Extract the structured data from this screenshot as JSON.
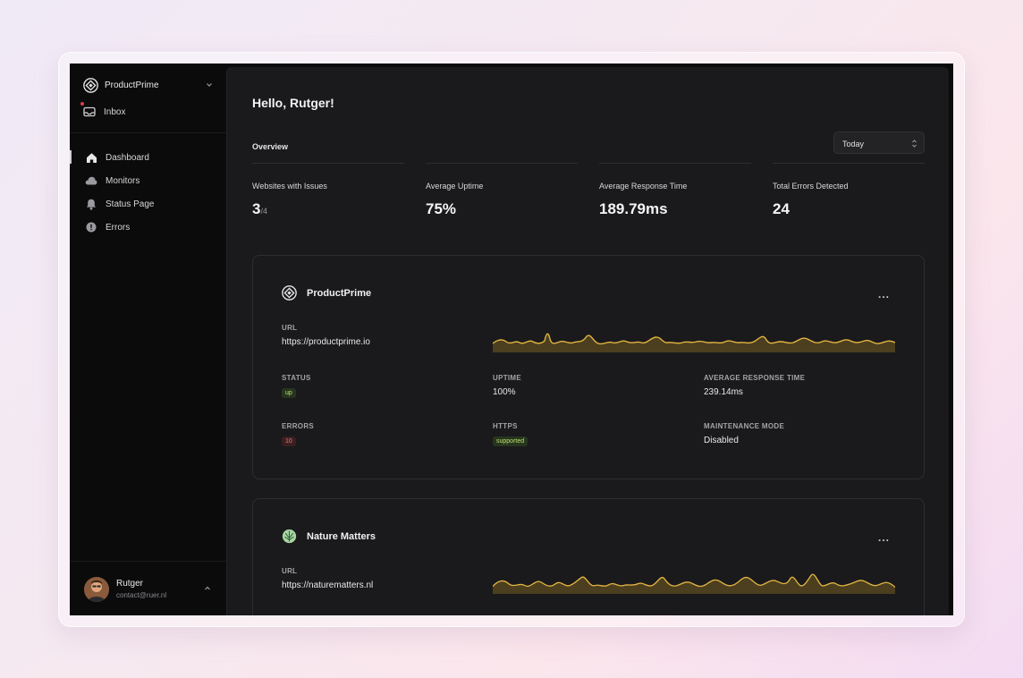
{
  "sidebar": {
    "brand": "ProductPrime",
    "inbox_label": "Inbox",
    "items": [
      {
        "label": "Dashboard",
        "icon": "home-icon",
        "active": true
      },
      {
        "label": "Monitors",
        "icon": "cloud-icon",
        "active": false
      },
      {
        "label": "Status Page",
        "icon": "bell-icon",
        "active": false
      },
      {
        "label": "Errors",
        "icon": "alert-circle-icon",
        "active": false
      }
    ],
    "user": {
      "name": "Rutger",
      "email": "contact@ruer.nl"
    }
  },
  "main": {
    "greeting": "Hello, Rutger!",
    "overview_label": "Overview",
    "range_select": "Today",
    "stats": [
      {
        "label": "Websites with Issues",
        "value": "3",
        "suffix": "/4"
      },
      {
        "label": "Average Uptime",
        "value": "75%",
        "suffix": ""
      },
      {
        "label": "Average Response Time",
        "value": "189.79ms",
        "suffix": ""
      },
      {
        "label": "Total Errors Detected",
        "value": "24",
        "suffix": ""
      }
    ],
    "sites": [
      {
        "name": "ProductPrime",
        "url_label": "URL",
        "url": "https://productprime.io",
        "status_label": "STATUS",
        "status": "up",
        "uptime_label": "UPTIME",
        "uptime": "100%",
        "avg_label": "AVERAGE RESPONSE TIME",
        "avg": "239.14ms",
        "errors_label": "ERRORS",
        "errors": "10",
        "https_label": "HTTPS",
        "https": "supported",
        "maintenance_label": "MAINTENANCE MODE",
        "maintenance": "Disabled",
        "more": "..."
      },
      {
        "name": "Nature Matters",
        "url_label": "URL",
        "url": "https://naturematters.nl",
        "more": "..."
      }
    ]
  },
  "colors": {
    "accent_line": "#e3b341",
    "fill": "#4b3f1f",
    "ok": "#b9e06a",
    "error": "#f07b7b"
  }
}
